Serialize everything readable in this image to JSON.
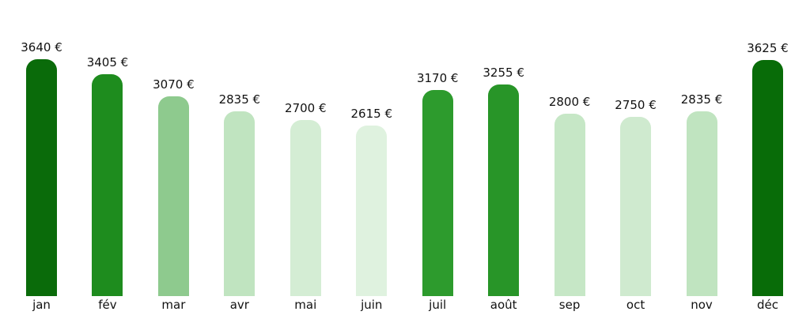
{
  "chart_data": {
    "type": "bar",
    "title": "",
    "xlabel": "",
    "ylabel": "",
    "unit": "€",
    "categories": [
      "jan",
      "fév",
      "mar",
      "avr",
      "mai",
      "juin",
      "juil",
      "août",
      "sep",
      "oct",
      "nov",
      "déc"
    ],
    "values": [
      3640,
      3405,
      3070,
      2835,
      2700,
      2615,
      3170,
      3255,
      2800,
      2750,
      2835,
      3625
    ],
    "value_labels": [
      "3640 €",
      "3405 €",
      "3070 €",
      "2835 €",
      "2700 €",
      "2615 €",
      "3170 €",
      "3255 €",
      "2800 €",
      "2750 €",
      "2835 €",
      "3625 €"
    ],
    "bar_colors": [
      "#0a6b0a",
      "#1e8c1e",
      "#8eca8e",
      "#c0e4c0",
      "#d4edd4",
      "#dff2df",
      "#2d9b2d",
      "#289528",
      "#c6e7c6",
      "#cfeacf",
      "#c0e4c0",
      "#086c08"
    ],
    "ylim": [
      0,
      3640
    ],
    "grid": false,
    "legend": "none",
    "axes_visible": false,
    "background_color": "#ffffff",
    "text_color": "#111111"
  }
}
